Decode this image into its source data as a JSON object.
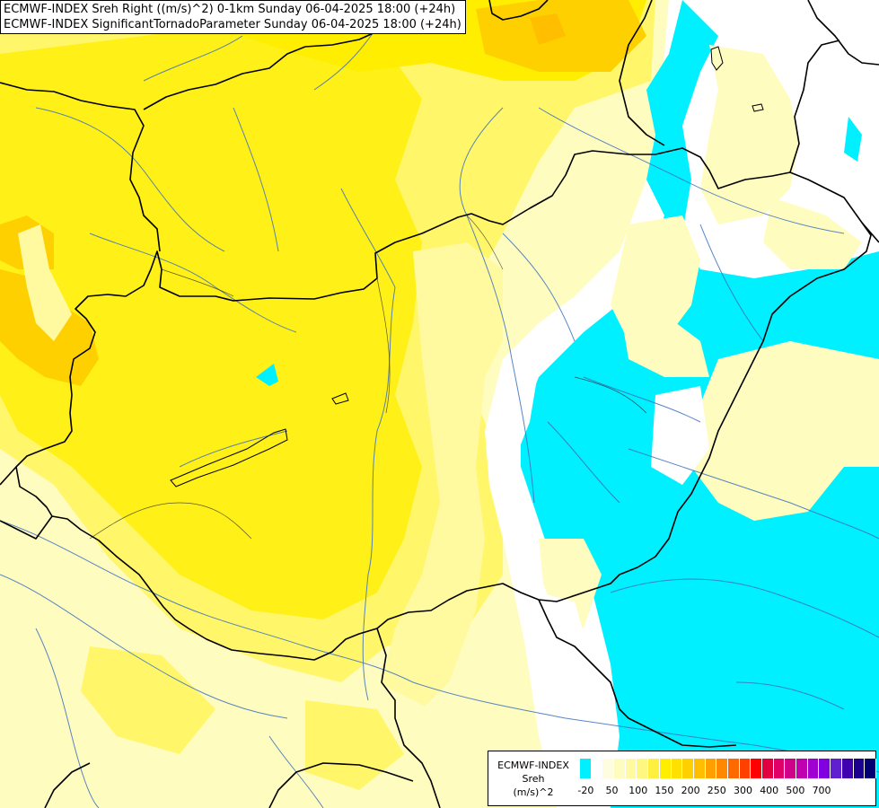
{
  "header": {
    "line1": "ECMWF-INDEX Sreh Right ((m/s)^2) 0-1km Sunday 06-04-2025 18:00 (+24h)",
    "line2": "ECMWF-INDEX SignificantTornadoParameter Sunday 06-04-2025 18:00 (+24h)"
  },
  "legend": {
    "line1": "ECMWF-INDEX",
    "line2": "Sreh",
    "line3": "(m/s)^2",
    "colors": [
      "#00f0ff",
      "#ffffff",
      "#fffde0",
      "#fffcc0",
      "#fff9a0",
      "#fff880",
      "#fff040",
      "#ffee00",
      "#ffe000",
      "#ffd000",
      "#ffbe00",
      "#ffa000",
      "#ff8800",
      "#ff6a00",
      "#ff4000",
      "#ff0000",
      "#e00040",
      "#e0006a",
      "#d0008a",
      "#c000b0",
      "#a000d0",
      "#8000e0",
      "#6020d0",
      "#4000b0",
      "#1c0090",
      "#000070"
    ],
    "ticks": [
      "-20",
      "50",
      "100",
      "150",
      "200",
      "250",
      "300",
      "400",
      "500",
      "700"
    ]
  }
}
